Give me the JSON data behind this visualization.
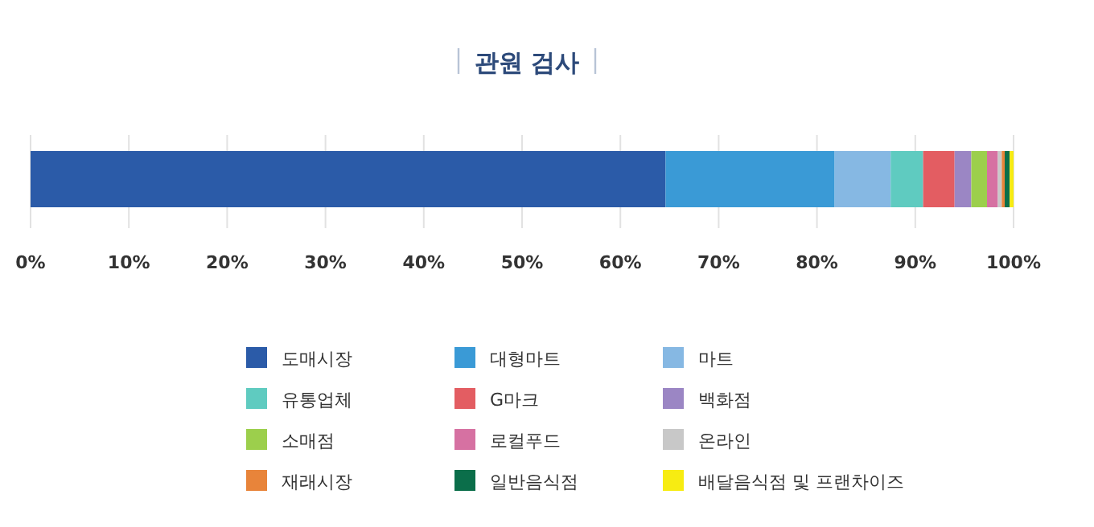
{
  "chart_data": {
    "type": "bar",
    "orientation": "horizontal",
    "stacked": true,
    "title": "관원 검사",
    "categories": [
      null
    ],
    "series": [
      {
        "name": "도매시장",
        "color": "#2b5ba8",
        "values": [
          64.6
        ]
      },
      {
        "name": "대형마트",
        "color": "#3a9ad6",
        "values": [
          17.2
        ]
      },
      {
        "name": "마트",
        "color": "#86b8e3",
        "values": [
          5.7
        ]
      },
      {
        "name": "유통업체",
        "color": "#5fcbc0",
        "values": [
          3.3
        ]
      },
      {
        "name": "G마크",
        "color": "#e35d62",
        "values": [
          3.2
        ]
      },
      {
        "name": "백화점",
        "color": "#9b86c4",
        "values": [
          1.7
        ]
      },
      {
        "name": "소매점",
        "color": "#9ccf4c",
        "values": [
          1.6
        ]
      },
      {
        "name": "로컬푸드",
        "color": "#d671a2",
        "values": [
          1.1
        ]
      },
      {
        "name": "온라인",
        "color": "#c8c8c8",
        "values": [
          0.4
        ]
      },
      {
        "name": "재래시장",
        "color": "#e8843a",
        "values": [
          0.3
        ]
      },
      {
        "name": "일반음식점",
        "color": "#0b6e4a",
        "values": [
          0.5
        ]
      },
      {
        "name": "배달음식점 및 프랜차이즈",
        "color": "#f7ec12",
        "values": [
          0.4
        ]
      }
    ],
    "xlim": [
      0,
      100
    ],
    "xticks": [
      {
        "value": 0,
        "label": "0%"
      },
      {
        "value": 10,
        "label": "10%"
      },
      {
        "value": 20,
        "label": "20%"
      },
      {
        "value": 30,
        "label": "30%"
      },
      {
        "value": 40,
        "label": "40%"
      },
      {
        "value": 50,
        "label": "50%"
      },
      {
        "value": 60,
        "label": "60%"
      },
      {
        "value": 70,
        "label": "70%"
      },
      {
        "value": 80,
        "label": "80%"
      },
      {
        "value": 90,
        "label": "90%"
      },
      {
        "value": 100,
        "label": "100%"
      }
    ],
    "grid": "x",
    "legend": "bottom"
  }
}
